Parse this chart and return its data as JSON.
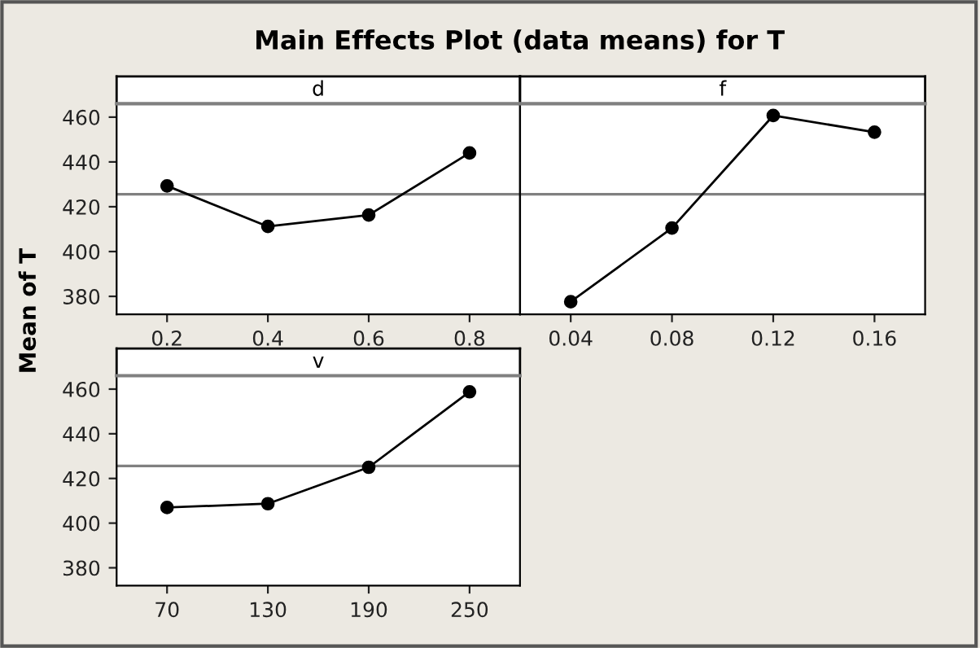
{
  "chart_data": [
    {
      "type": "line",
      "title": "Main Effects Plot (data means) for T",
      "subtitle": "d",
      "ylabel": "Mean of T",
      "x": [
        0.2,
        0.4,
        0.6,
        0.8
      ],
      "series": [
        {
          "color": "#000000",
          "values": [
            429.3,
            411.2,
            416.3,
            444.0
          ]
        }
      ],
      "xlim": [
        0.1,
        0.9
      ],
      "xticks": [
        0.2,
        0.4,
        0.6,
        0.8
      ],
      "ylim": [
        372,
        466
      ],
      "yticks": [
        380,
        400,
        420,
        440,
        460
      ],
      "ref_lines": [
        {
          "axis": "y",
          "value": 425.6,
          "color": "#808080"
        }
      ],
      "marker": "circle",
      "line_style": "solid",
      "grid": false,
      "legend": false
    },
    {
      "type": "line",
      "subtitle": "f",
      "x": [
        0.04,
        0.08,
        0.12,
        0.16
      ],
      "series": [
        {
          "color": "#000000",
          "values": [
            377.6,
            410.5,
            460.7,
            453.3
          ]
        }
      ],
      "xlim": [
        0.02,
        0.18
      ],
      "xticks": [
        0.04,
        0.08,
        0.12,
        0.16
      ],
      "ylim": [
        372,
        466
      ],
      "tick_labels": "x",
      "ref_lines": [
        {
          "axis": "y",
          "value": 425.6,
          "color": "#808080"
        }
      ],
      "marker": "circle",
      "line_style": "solid",
      "grid": false,
      "legend": false
    },
    {
      "type": "line",
      "subtitle": "v",
      "x": [
        70,
        130,
        190,
        250
      ],
      "series": [
        {
          "color": "#000000",
          "values": [
            407.0,
            408.7,
            425.0,
            458.8
          ]
        }
      ],
      "xlim": [
        40,
        280
      ],
      "xticks": [
        70,
        130,
        190,
        250
      ],
      "ylim": [
        372,
        466
      ],
      "yticks": [
        380,
        400,
        420,
        440,
        460
      ],
      "ref_lines": [
        {
          "axis": "y",
          "value": 425.6,
          "color": "#808080"
        }
      ],
      "marker": "circle",
      "line_style": "solid",
      "grid": false,
      "legend": false
    }
  ]
}
